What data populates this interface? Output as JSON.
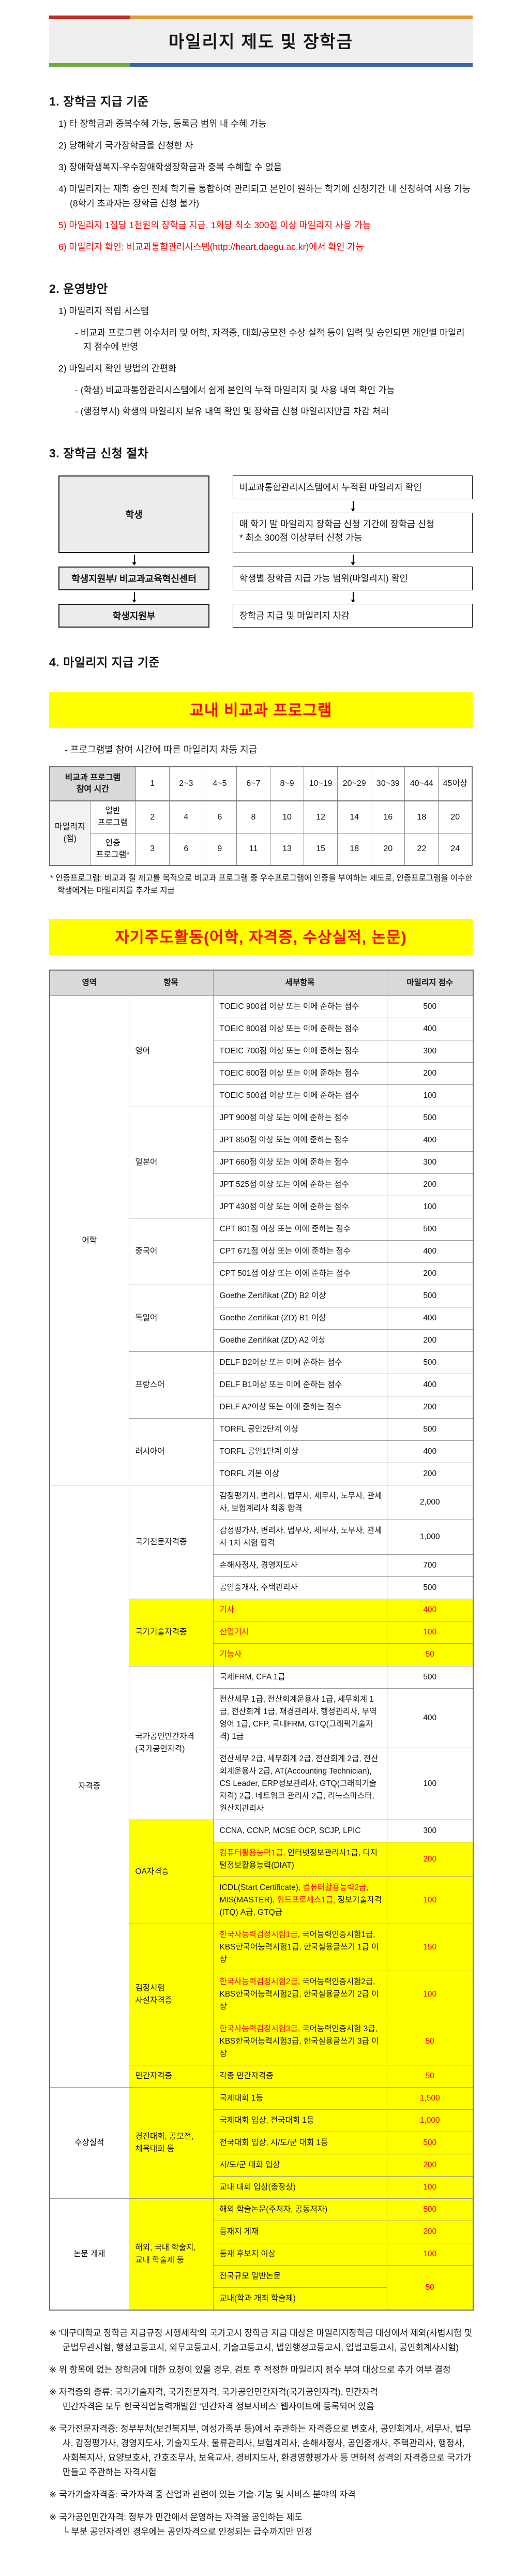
{
  "page": {
    "title": "마일리지 제도 및 장학금"
  },
  "colors": {
    "accent_red": "#c5281c",
    "accent_orange": "#e19b35",
    "accent_green": "#6fae3c",
    "accent_blue": "#3a67ab",
    "highlight_yellow": "#ffff00",
    "text_red": "#ff0000",
    "header_gray": "#d9d9d9"
  },
  "section1": {
    "heading": "1. 장학금 지급 기준",
    "items": [
      {
        "t": "1) 타 장학금과 중복수혜 가능, 등록금 범위 내 수혜 가능",
        "red": false
      },
      {
        "t": "2) 당해학기 국가장학금을 신청한 자",
        "red": false
      },
      {
        "t": "3) 장애학생복지-우수장애학생장학금과 중복 수혜할 수 없음",
        "red": false
      },
      {
        "t": "4) 마일리지는 재학 중인 전체 학기를 통합하여 관리되고 본인이 원하는 학기에 신청기간 내 신청하여 사용 가능(8학기 초과자는 장학금 신청 불가)",
        "red": false
      },
      {
        "t": "5) 마일리지 1점당 1천원의 장학금 지급, 1회당 최소 300점 이상 마일리지 사용 가능",
        "red": true
      },
      {
        "t": "6) 마일리지 확인: 비교과통합관리시스템(http://heart.daegu.ac.kr)에서 확인 가능",
        "red": true
      }
    ]
  },
  "section2": {
    "heading": "2. 운영방안",
    "items": [
      {
        "t": "1) 마일리지 적립 시스템",
        "sub": false
      },
      {
        "t": "- 비교과 프로그램 이수처리 및 어학, 자격증, 대회/공모전 수상 실적 등이 입력 및 승인되면 개인별 마일리지 점수에 반영",
        "sub": true
      },
      {
        "t": "2) 마일리지 확인 방법의 간편화",
        "sub": false
      },
      {
        "t": "- (학생) 비교과통합관리시스템에서 쉽게 본인의 누적 마일리지 및 사용 내역 확인 가능",
        "sub": true
      },
      {
        "t": "- (행정부서) 학생의 마일리지 보유 내역 확인 및 장학금 신청 마일리지만큼 차감 처리",
        "sub": true
      }
    ]
  },
  "section3": {
    "heading": "3. 장학금 신청 절차",
    "flow": {
      "left1": "학생",
      "left2": "학생지원부/ 비교과교육혁신센터",
      "left3": "학생지원부",
      "right1": "비교과통합관리시스템에서 누적된 마일리지 확인",
      "right2a": "매 학기 말 마일리지 장학금 신청 기간에 장학금 신청",
      "right2b": "* 최소 300점 이상부터 신청 가능",
      "right3": "학생별 장학금 지급 가능 범위(마일리지) 확인",
      "right4": "장학금 지급 및 마일리지 차감"
    }
  },
  "section4": {
    "heading": "4. 마일리지 지급 기준",
    "banner1": "교내 비교과 프로그램",
    "bullet1": "- 프로그램별 참여 시간에 따른 마일리지 차등 지급",
    "table1": {
      "rows": [
        [
          {
            "t": "비교과 프로그램\n참여 시간",
            "c": 2,
            "k": "gray pre"
          },
          {
            "t": "1"
          },
          {
            "t": "2~3"
          },
          {
            "t": "4~5"
          },
          {
            "t": "6~7"
          },
          {
            "t": "8~9"
          },
          {
            "t": "10~19"
          },
          {
            "t": "20~29"
          },
          {
            "t": "30~39"
          },
          {
            "t": "40~44"
          },
          {
            "t": "45이상"
          }
        ],
        [
          {
            "t": "마일리지\n(점)",
            "r": 2,
            "k": "lgray pre"
          },
          {
            "t": "일반\n프로그램",
            "k": "pre"
          },
          {
            "t": "2"
          },
          {
            "t": "4"
          },
          {
            "t": "6"
          },
          {
            "t": "8"
          },
          {
            "t": "10"
          },
          {
            "t": "12"
          },
          {
            "t": "14"
          },
          {
            "t": "16"
          },
          {
            "t": "18"
          },
          {
            "t": "20"
          }
        ],
        [
          {
            "t": "인증\n프로그램*",
            "k": "pre"
          },
          {
            "t": "3"
          },
          {
            "t": "6"
          },
          {
            "t": "9"
          },
          {
            "t": "11"
          },
          {
            "t": "13"
          },
          {
            "t": "15"
          },
          {
            "t": "18"
          },
          {
            "t": "20"
          },
          {
            "t": "22"
          },
          {
            "t": "24"
          }
        ]
      ]
    },
    "table1_footnote": "* 인증프로그램: 비교과 질 제고를 목적으로 비교과 프로그램 중 우수프로그램에 인증을 부여하는 제도로, 인증프로그램을 이수한 학생에게는 마일리지를 추가로 지급",
    "banner2": "자기주도활동(어학, 자격증, 수상실적, 논문)",
    "table2": {
      "rows": [
        [
          {
            "t": "영역",
            "k": "gray"
          },
          {
            "t": "항목",
            "k": "gray"
          },
          {
            "t": "세부항목",
            "k": "gray"
          },
          {
            "t": "마일리지 점수",
            "k": "gray"
          }
        ],
        [
          {
            "t": "어학",
            "r": 22
          },
          {
            "t": "영어",
            "r": 5,
            "k": "l"
          },
          {
            "t": "TOEIC 900점 이상 또는 이에 준하는 점수",
            "k": "l"
          },
          {
            "t": "500"
          }
        ],
        [
          {
            "t": "TOEIC 800점 이상 또는 이에 준하는 점수",
            "k": "l"
          },
          {
            "t": "400"
          }
        ],
        [
          {
            "t": "TOEIC 700점 이상 또는 이에 준하는 점수",
            "k": "l"
          },
          {
            "t": "300"
          }
        ],
        [
          {
            "t": "TOEIC 600점 이상 또는 이에 준하는 점수",
            "k": "l"
          },
          {
            "t": "200"
          }
        ],
        [
          {
            "t": "TOEIC 500점 이상 또는 이에 준하는 점수",
            "k": "l"
          },
          {
            "t": "100"
          }
        ],
        [
          {
            "t": "일본어",
            "r": 5,
            "k": "l"
          },
          {
            "t": "JPT 900점 이상 또는 이에 준하는 점수",
            "k": "l"
          },
          {
            "t": "500"
          }
        ],
        [
          {
            "t": "JPT 850점 이상 또는 이에 준하는 점수",
            "k": "l"
          },
          {
            "t": "400"
          }
        ],
        [
          {
            "t": "JPT 660점 이상 또는 이에 준하는 점수",
            "k": "l"
          },
          {
            "t": "300"
          }
        ],
        [
          {
            "t": "JPT 525점 이상 또는 이에 준하는 점수",
            "k": "l"
          },
          {
            "t": "200"
          }
        ],
        [
          {
            "t": "JPT 430점 이상 또는 이에 준하는 점수",
            "k": "l"
          },
          {
            "t": "100"
          }
        ],
        [
          {
            "t": "중국어",
            "r": 3,
            "k": "l"
          },
          {
            "t": "CPT 801점 이상 또는 이에 준하는 점수",
            "k": "l"
          },
          {
            "t": "500"
          }
        ],
        [
          {
            "t": "CPT 671점 이상 또는 이에 준하는 점수",
            "k": "l"
          },
          {
            "t": "400"
          }
        ],
        [
          {
            "t": "CPT 501점 이상 또는 이에 준하는 점수",
            "k": "l"
          },
          {
            "t": "200"
          }
        ],
        [
          {
            "t": "독일어",
            "r": 3,
            "k": "l"
          },
          {
            "t": "Goethe Zertifikat (ZD) B2 이상",
            "k": "l"
          },
          {
            "t": "500"
          }
        ],
        [
          {
            "t": "Goethe Zertifikat (ZD) B1 이상",
            "k": "l"
          },
          {
            "t": "400"
          }
        ],
        [
          {
            "t": "Goethe Zertifikat (ZD) A2 이상",
            "k": "l"
          },
          {
            "t": "200"
          }
        ],
        [
          {
            "t": "프랑스어",
            "r": 3,
            "k": "l"
          },
          {
            "t": "DELF B2이상 또는 이에 준하는 점수",
            "k": "l"
          },
          {
            "t": "500"
          }
        ],
        [
          {
            "t": "DELF B1이상 또는 이에 준하는 점수",
            "k": "l"
          },
          {
            "t": "400"
          }
        ],
        [
          {
            "t": "DELF A2이상 또는 이에 준하는 점수",
            "k": "l"
          },
          {
            "t": "200"
          }
        ],
        [
          {
            "t": "러시아어",
            "r": 3,
            "k": "l"
          },
          {
            "t": "TORFL 공인2단계 이상",
            "k": "l"
          },
          {
            "t": "500"
          }
        ],
        [
          {
            "t": "TORFL 공인1단계 이상",
            "k": "l"
          },
          {
            "t": "400"
          }
        ],
        [
          {
            "t": "TORFL 기본 이상",
            "k": "l"
          },
          {
            "t": "200"
          }
        ],
        [
          {
            "t": "자격증",
            "r": 17
          },
          {
            "t": "국가전문자격증",
            "r": 4,
            "k": "l"
          },
          {
            "t": "감정평가사, 변리사, 법무사, 세무사, 노무사, 관세사, 보험계리사 최종 합격",
            "k": "l"
          },
          {
            "t": "2,000"
          }
        ],
        [
          {
            "t": "감정평가사, 변리사, 법무사, 세무사, 노무사, 관세사 1차 시험 합격",
            "k": "l"
          },
          {
            "t": "1,000"
          }
        ],
        [
          {
            "t": "손해사정사, 경영지도사",
            "k": "l"
          },
          {
            "t": "700"
          }
        ],
        [
          {
            "t": "공인중개사, 주택관리사",
            "k": "l"
          },
          {
            "t": "500"
          }
        ],
        [
          {
            "t": "국가기술자격증",
            "r": 3,
            "k": "l yel"
          },
          {
            "t": "기사",
            "k": "l yel red"
          },
          {
            "t": "400",
            "k": "yel red"
          }
        ],
        [
          {
            "t": "산업기사",
            "k": "l yel red"
          },
          {
            "t": "100",
            "k": "yel red"
          }
        ],
        [
          {
            "t": "기능사",
            "k": "l yel red"
          },
          {
            "t": "50",
            "k": "yel red"
          }
        ],
        [
          {
            "t": "국가공인민간자격\n(국가공인자격)",
            "r": 3,
            "k": "l pre"
          },
          {
            "t": "국제FRM, CFA 1급",
            "k": "l"
          },
          {
            "t": "500"
          }
        ],
        [
          {
            "t": "전산세무 1급, 전산회계운용사 1급, 세무회계 1급, 전산회계 1급, 재경관리사, 행정관리사, 무역영어 1급, CFP, 국내FRM, GTQ(그래픽기술자격) 1급",
            "k": "l"
          },
          {
            "t": "400"
          }
        ],
        [
          {
            "t": "전산세무 2급, 세무회계 2급, 전산회계 2급, 전산회계운용사 2급, AT(Accounting Technician), CS Leader, ERP정보관리사, GTQ(그래픽기술자격) 2급, 네트워크 관리사 2급, 리눅스마스터, 원산지관리사",
            "k": "l"
          },
          {
            "t": "100"
          }
        ],
        [
          {
            "t": "OA자격증",
            "r": 3,
            "k": "l yel"
          },
          {
            "t": "CCNA, CCNP, MCSE OCP, SCJP, LPIC",
            "k": "l"
          },
          {
            "t": "300"
          }
        ],
        [
          {
            "t": [
              {
                "s": "컴퓨터활용능력1급, ",
                "red": true
              },
              {
                "s": "인터넷정보관리사1급, 디지털정보활용능력(DIAT)"
              }
            ],
            "k": "l yel"
          },
          {
            "t": "200",
            "k": "yel red"
          }
        ],
        [
          {
            "t": [
              {
                "s": "ICDL(Start Certificate), "
              },
              {
                "s": "컴퓨터활용능력2급, ",
                "red": true
              },
              {
                "s": "MIS(MASTER), "
              },
              {
                "s": "워드프로세스1급, ",
                "red": true
              },
              {
                "s": "정보기술자격(ITQ) A급, GTQ급"
              }
            ],
            "k": "l yel"
          },
          {
            "t": "100",
            "k": "yel red"
          }
        ],
        [
          {
            "t": "검정시험\n사설자격증",
            "r": 3,
            "k": "l yel pre"
          },
          {
            "t": [
              {
                "s": "한국사능력검정시험1급",
                "red": true
              },
              {
                "s": ", 국어능력인증시험1급, KBS한국어능력시험1급, 한국실용글쓰기 1급 이상"
              }
            ],
            "k": "l yel"
          },
          {
            "t": "150",
            "k": "yel red"
          }
        ],
        [
          {
            "t": [
              {
                "s": "한국사능력검정시험2급",
                "red": true
              },
              {
                "s": ", 국어능력인증시험2급, KBS한국어능력시험2급, 한국실용글쓰기 2급 이상"
              }
            ],
            "k": "l yel"
          },
          {
            "t": "100",
            "k": "yel red"
          }
        ],
        [
          {
            "t": [
              {
                "s": "한국사능력검정시험3급",
                "red": true
              },
              {
                "s": ", 국어능력인증시험 3급, KBS한국어능력시험3급, 한국실용글쓰기 3급 이상"
              }
            ],
            "k": "l yel"
          },
          {
            "t": "50",
            "k": "yel red"
          }
        ],
        [
          {
            "t": "민간자격증",
            "k": "l yel"
          },
          {
            "t": "각종 민간자격증",
            "k": "l yel"
          },
          {
            "t": "50",
            "k": "yel red"
          }
        ],
        [
          {
            "t": "수상실적",
            "r": 5
          },
          {
            "t": "경진대회, 공모전,\n체육대회 등",
            "r": 5,
            "k": "l yel pre"
          },
          {
            "t": "국제대회 1등",
            "k": "l yel"
          },
          {
            "t": "1,500",
            "k": "yel red"
          }
        ],
        [
          {
            "t": "국제대회 입상, 전국대회 1등",
            "k": "l yel"
          },
          {
            "t": "1,000",
            "k": "yel red"
          }
        ],
        [
          {
            "t": "전국대회 입상, 시/도/군 대회 1등",
            "k": "l yel"
          },
          {
            "t": "500",
            "k": "yel red"
          }
        ],
        [
          {
            "t": "시/도/군 대회 입상",
            "k": "l yel"
          },
          {
            "t": "200",
            "k": "yel red"
          }
        ],
        [
          {
            "t": "교내 대회 입상(총장상)",
            "k": "l yel"
          },
          {
            "t": "100",
            "k": "yel red"
          }
        ],
        [
          {
            "t": "논문 게재",
            "r": 5
          },
          {
            "t": "해외, 국내 학술지,\n교내 학술제 등",
            "r": 5,
            "k": "l yel pre"
          },
          {
            "t": "해외 학술논문(주저자, 공동저자)",
            "k": "l yel"
          },
          {
            "t": "500",
            "k": "yel red"
          }
        ],
        [
          {
            "t": "등재지 게재",
            "k": "l yel"
          },
          {
            "t": "200",
            "k": "yel red"
          }
        ],
        [
          {
            "t": "등재 후보지 이상",
            "k": "l yel"
          },
          {
            "t": "100",
            "k": "yel red"
          }
        ],
        [
          {
            "t": "전국규모 일반논문",
            "k": "l yel"
          },
          {
            "t": "50",
            "r": 2,
            "k": "yel red"
          }
        ],
        [
          {
            "t": "교내(학과 개최 학술제)",
            "k": "l yel"
          }
        ]
      ]
    },
    "notes": [
      {
        "lines": [
          "※ '대구대학교 장학금 지급규정 시행세칙'의 국가고시 장학금 지급 대상은 마일리지장학금 대상에서 제외(사법시험 및 군법무관시험, 행정고등고시, 외무고등고시, 기술고등고시, 법원행정고등고시, 입법고등고시, 공인회계사시험)"
        ]
      },
      {
        "lines": [
          "※ 위 항목에 없는 장학금에 대한 요청이 있을 경우, 검토 후 적정한 마일리지 점수 부여 대상으로 추가 여부 결정"
        ]
      },
      {
        "lines": [
          "※ 자격증의 종류: 국가기술자격, 국가전문자격, 국가공인민간자격(국가공인자격), 민간자격",
          "민간자격은 모두 한국직업능력개발원 '민간자격 정보서비스' 웹사이트에 등록되어 있음"
        ]
      },
      {
        "lines": [
          "※ 국가전문자격증: 정부부처(보건복지부, 여성가족부 등)에서 주관하는 자격증으로 변호사, 공인회계사, 세무사, 법무사, 감정평가사, 경영지도사, 기술지도사, 물류관리사, 보험계리사, 손해사정사, 공인중개사, 주택관리사, 행정사, 사회복지사, 요양보호사, 간호조무사, 보육교사, 경비지도사, 환경영향평가사 등 면허적 성격의 자격증으로 국가가 만들고 주관하는 자격시험"
        ]
      },
      {
        "lines": [
          "※ 국가기술자격증: 국가자격 중 산업과 관련이 있는 기술·기능 및 서비스 분야의 자격"
        ]
      },
      {
        "lines": [
          "※ 국가공인민간자격: 정부가 민간에서 운영하는 자격을 공인하는 제도",
          "└ 부분 공인자격인 경우에는 공인자격으로 인정되는 급수까지만 인정"
        ]
      }
    ]
  }
}
